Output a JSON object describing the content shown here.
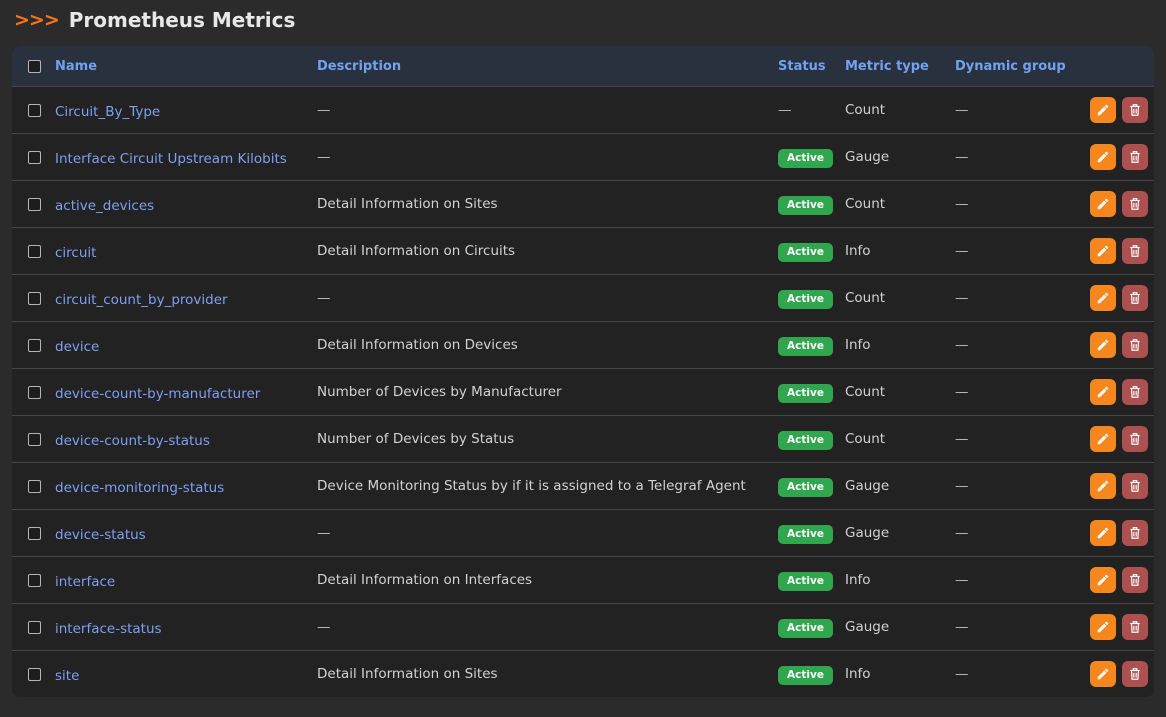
{
  "page": {
    "title_prefix": ">>>",
    "title": "Prometheus Metrics"
  },
  "table": {
    "columns": [
      "Name",
      "Description",
      "Status",
      "Metric type",
      "Dynamic group"
    ],
    "empty_value": "—",
    "active_badge_label": "Active",
    "rows": [
      {
        "name": "Circuit_By_Type",
        "description": "—",
        "status": "—",
        "metric_type": "Count",
        "dynamic_group": "—"
      },
      {
        "name": "Interface Circuit Upstream Kilobits",
        "description": "—",
        "status": "Active",
        "metric_type": "Gauge",
        "dynamic_group": "—"
      },
      {
        "name": "active_devices",
        "description": "Detail Information on Sites",
        "status": "Active",
        "metric_type": "Count",
        "dynamic_group": "—"
      },
      {
        "name": "circuit",
        "description": "Detail Information on Circuits",
        "status": "Active",
        "metric_type": "Info",
        "dynamic_group": "—"
      },
      {
        "name": "circuit_count_by_provider",
        "description": "—",
        "status": "Active",
        "metric_type": "Count",
        "dynamic_group": "—"
      },
      {
        "name": "device",
        "description": "Detail Information on Devices",
        "status": "Active",
        "metric_type": "Info",
        "dynamic_group": "—"
      },
      {
        "name": "device-count-by-manufacturer",
        "description": "Number of Devices by Manufacturer",
        "status": "Active",
        "metric_type": "Count",
        "dynamic_group": "—"
      },
      {
        "name": "device-count-by-status",
        "description": "Number of Devices by Status",
        "status": "Active",
        "metric_type": "Count",
        "dynamic_group": "—"
      },
      {
        "name": "device-monitoring-status",
        "description": "Device Monitoring Status by if it is assigned to a Telegraf Agent",
        "status": "Active",
        "metric_type": "Gauge",
        "dynamic_group": "—"
      },
      {
        "name": "device-status",
        "description": "—",
        "status": "Active",
        "metric_type": "Gauge",
        "dynamic_group": "—"
      },
      {
        "name": "interface",
        "description": "Detail Information on Interfaces",
        "status": "Active",
        "metric_type": "Info",
        "dynamic_group": "—"
      },
      {
        "name": "interface-status",
        "description": "—",
        "status": "Active",
        "metric_type": "Gauge",
        "dynamic_group": "—"
      },
      {
        "name": "site",
        "description": "Detail Information on Sites",
        "status": "Active",
        "metric_type": "Info",
        "dynamic_group": "—"
      }
    ]
  },
  "icons": {
    "edit": "pencil-icon",
    "delete": "trash-icon"
  },
  "colors": {
    "accent_orange": "#f6871f",
    "badge_green": "#30a64e",
    "delete_red": "#ad5050",
    "link_blue": "#7f9ff2",
    "header_blue": "#71a2f1"
  }
}
